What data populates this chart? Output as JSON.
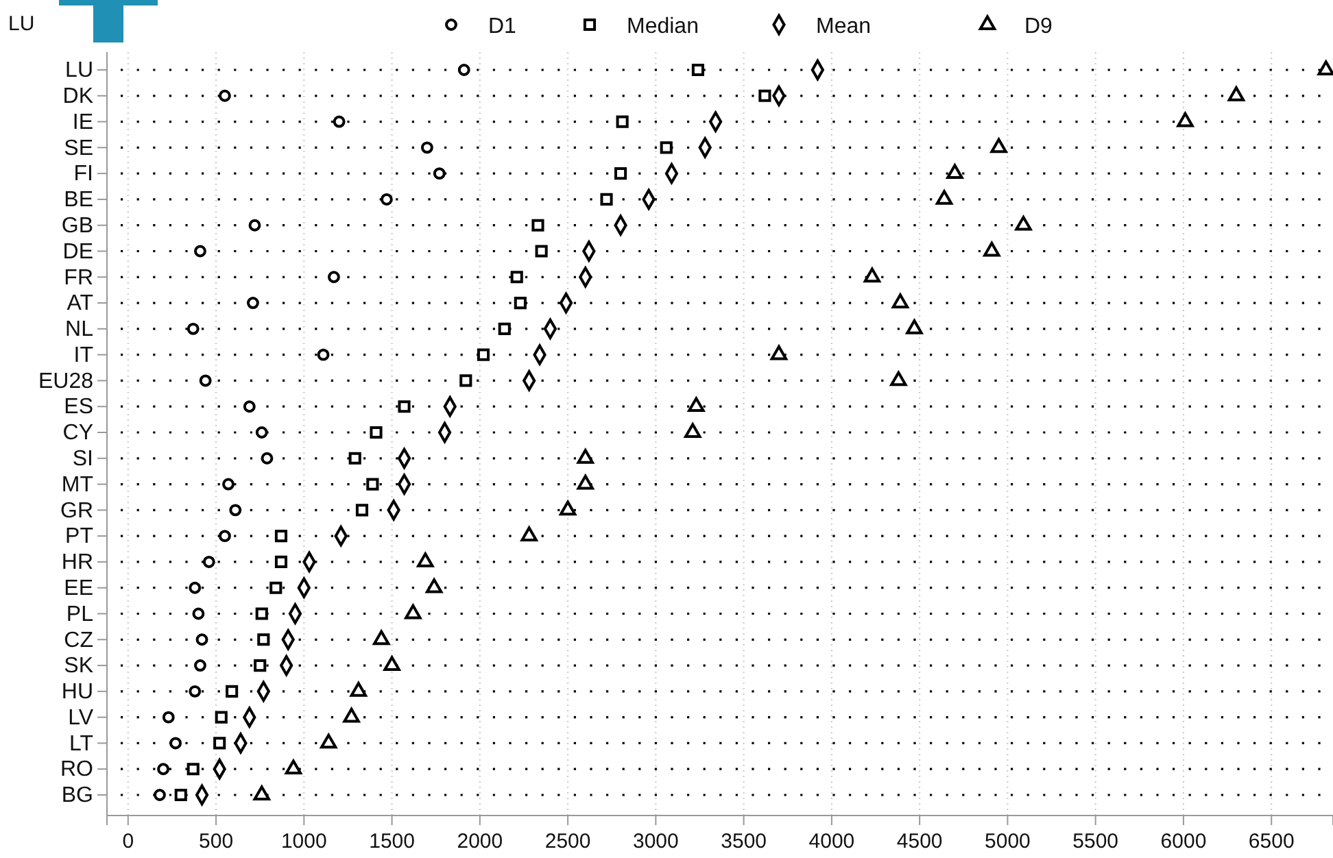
{
  "chart_data": {
    "type": "scatter",
    "orientation": "horizontal",
    "categories": [
      "LU",
      "DK",
      "IE",
      "SE",
      "FI",
      "BE",
      "GB",
      "DE",
      "FR",
      "AT",
      "NL",
      "IT",
      "EU28",
      "ES",
      "CY",
      "SI",
      "MT",
      "GR",
      "PT",
      "HR",
      "EE",
      "PL",
      "CZ",
      "SK",
      "HU",
      "LV",
      "LT",
      "RO",
      "BG"
    ],
    "series": [
      {
        "name": "D1",
        "color": "#000000",
        "marker": "circle",
        "values": [
          1910,
          550,
          1200,
          1700,
          1770,
          1470,
          720,
          410,
          1170,
          710,
          370,
          1110,
          440,
          690,
          760,
          790,
          570,
          610,
          550,
          460,
          380,
          400,
          420,
          410,
          380,
          230,
          270,
          200,
          180
        ]
      },
      {
        "name": "Median",
        "color": "#000000",
        "marker": "square",
        "values": [
          3240,
          3620,
          2810,
          3060,
          2800,
          2720,
          2330,
          2350,
          2210,
          2230,
          2140,
          2020,
          1920,
          1570,
          1410,
          1290,
          1390,
          1330,
          870,
          870,
          840,
          760,
          770,
          750,
          590,
          530,
          520,
          370,
          300
        ]
      },
      {
        "name": "Mean",
        "color": "#000000",
        "marker": "diamond",
        "values": [
          3920,
          3700,
          3340,
          3280,
          3090,
          2960,
          2800,
          2620,
          2600,
          2490,
          2400,
          2340,
          2280,
          1830,
          1800,
          1570,
          1570,
          1510,
          1210,
          1030,
          1000,
          950,
          910,
          900,
          770,
          690,
          640,
          520,
          420
        ]
      },
      {
        "name": "D9",
        "color": "#000000",
        "marker": "triangle",
        "values": [
          6810,
          6300,
          6010,
          4950,
          4700,
          4640,
          5090,
          4910,
          4230,
          4390,
          4470,
          3700,
          4380,
          3230,
          3210,
          2600,
          2600,
          2500,
          2280,
          1690,
          1740,
          1620,
          1440,
          1500,
          1310,
          1270,
          1140,
          940,
          760
        ]
      }
    ],
    "xlim": [
      -120,
      6850
    ],
    "xticks": [
      0,
      500,
      1000,
      1500,
      2000,
      2500,
      3000,
      3500,
      4000,
      4500,
      5000,
      5500,
      6000,
      6500
    ],
    "grid": true,
    "legend": "top",
    "annotations": [
      "LU"
    ]
  }
}
